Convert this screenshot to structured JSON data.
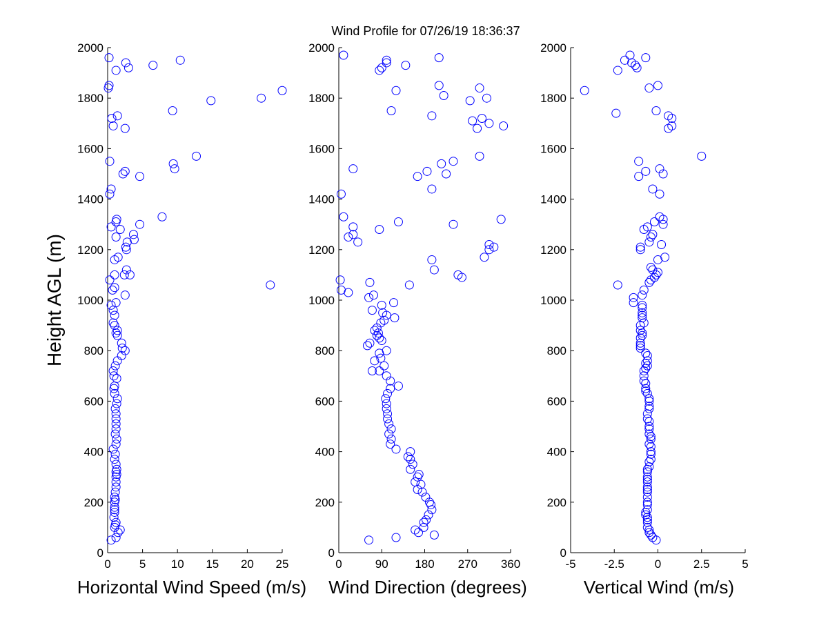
{
  "title": "Wind Profile for  07/26/19 18:36:37",
  "chart_data": [
    {
      "type": "scatter",
      "xlabel": "Horizontal Wind Speed (m/s)",
      "ylabel": "Height AGL (m)",
      "xlim": [
        0,
        25
      ],
      "ylim": [
        0,
        2000
      ],
      "xticks": [
        "0",
        "5",
        "10",
        "15",
        "20",
        "25"
      ],
      "yticks": [
        "0",
        "200",
        "400",
        "600",
        "800",
        "1000",
        "1200",
        "1400",
        "1600",
        "1800",
        "2000"
      ],
      "marker_color": "#0000ff",
      "points": [
        [
          0.5,
          50
        ],
        [
          1.2,
          60
        ],
        [
          1.5,
          80
        ],
        [
          1.8,
          90
        ],
        [
          1.0,
          100
        ],
        [
          1.1,
          110
        ],
        [
          1.2,
          120
        ],
        [
          0.9,
          140
        ],
        [
          1.0,
          160
        ],
        [
          1.0,
          170
        ],
        [
          1.0,
          180
        ],
        [
          1.0,
          200
        ],
        [
          1.1,
          210
        ],
        [
          1.0,
          220
        ],
        [
          1.1,
          240
        ],
        [
          1.2,
          260
        ],
        [
          1.2,
          280
        ],
        [
          1.2,
          300
        ],
        [
          1.3,
          310
        ],
        [
          1.2,
          320
        ],
        [
          1.3,
          330
        ],
        [
          1.2,
          350
        ],
        [
          1.0,
          370
        ],
        [
          1.1,
          390
        ],
        [
          0.8,
          410
        ],
        [
          1.2,
          430
        ],
        [
          1.3,
          450
        ],
        [
          1.1,
          470
        ],
        [
          1.2,
          490
        ],
        [
          1.2,
          510
        ],
        [
          1.2,
          530
        ],
        [
          1.2,
          550
        ],
        [
          1.1,
          570
        ],
        [
          1.3,
          590
        ],
        [
          1.4,
          610
        ],
        [
          1.0,
          630
        ],
        [
          0.9,
          650
        ],
        [
          1.0,
          660
        ],
        [
          1.3,
          690
        ],
        [
          0.9,
          700
        ],
        [
          0.8,
          720
        ],
        [
          1.1,
          740
        ],
        [
          1.4,
          760
        ],
        [
          2.0,
          780
        ],
        [
          2.5,
          800
        ],
        [
          2.1,
          810
        ],
        [
          2.0,
          830
        ],
        [
          1.4,
          860
        ],
        [
          1.2,
          870
        ],
        [
          1.4,
          880
        ],
        [
          1.0,
          900
        ],
        [
          0.8,
          910
        ],
        [
          1.0,
          940
        ],
        [
          0.8,
          960
        ],
        [
          0.5,
          980
        ],
        [
          1.2,
          990
        ],
        [
          2.5,
          1020
        ],
        [
          0.7,
          1040
        ],
        [
          1.0,
          1050
        ],
        [
          0.3,
          1080
        ],
        [
          23.3,
          1060
        ],
        [
          1.0,
          1100
        ],
        [
          2.4,
          1100
        ],
        [
          3.2,
          1100
        ],
        [
          2.7,
          1120
        ],
        [
          1.0,
          1160
        ],
        [
          1.5,
          1170
        ],
        [
          2.7,
          1200
        ],
        [
          2.6,
          1210
        ],
        [
          2.8,
          1230
        ],
        [
          3.8,
          1240
        ],
        [
          1.2,
          1250
        ],
        [
          3.7,
          1260
        ],
        [
          1.8,
          1280
        ],
        [
          0.5,
          1290
        ],
        [
          4.6,
          1300
        ],
        [
          1.2,
          1310
        ],
        [
          1.3,
          1320
        ],
        [
          7.8,
          1330
        ],
        [
          0.3,
          1420
        ],
        [
          0.5,
          1440
        ],
        [
          4.6,
          1490
        ],
        [
          2.2,
          1500
        ],
        [
          2.5,
          1510
        ],
        [
          9.6,
          1520
        ],
        [
          9.4,
          1540
        ],
        [
          0.3,
          1550
        ],
        [
          12.7,
          1570
        ],
        [
          2.5,
          1680
        ],
        [
          0.8,
          1690
        ],
        [
          0.6,
          1720
        ],
        [
          1.4,
          1730
        ],
        [
          9.3,
          1750
        ],
        [
          14.8,
          1790
        ],
        [
          22.0,
          1800
        ],
        [
          25.0,
          1830
        ],
        [
          0.1,
          1840
        ],
        [
          0.2,
          1850
        ],
        [
          1.2,
          1910
        ],
        [
          3.0,
          1920
        ],
        [
          6.5,
          1930
        ],
        [
          2.6,
          1940
        ],
        [
          10.4,
          1950
        ],
        [
          0.2,
          1960
        ]
      ]
    },
    {
      "type": "scatter",
      "xlabel": "Wind Direction (degrees)",
      "ylabel": "",
      "xlim": [
        0,
        360
      ],
      "ylim": [
        0,
        2000
      ],
      "xticks": [
        "0",
        "90",
        "180",
        "270",
        "360"
      ],
      "yticks": [
        "0",
        "200",
        "400",
        "600",
        "800",
        "1000",
        "1200",
        "1400",
        "1600",
        "1800",
        "2000"
      ],
      "marker_color": "#0000ff",
      "points": [
        [
          63,
          50
        ],
        [
          120,
          60
        ],
        [
          200,
          70
        ],
        [
          167,
          80
        ],
        [
          160,
          90
        ],
        [
          178,
          100
        ],
        [
          178,
          120
        ],
        [
          183,
          130
        ],
        [
          188,
          150
        ],
        [
          195,
          170
        ],
        [
          193,
          190
        ],
        [
          190,
          200
        ],
        [
          182,
          220
        ],
        [
          175,
          240
        ],
        [
          165,
          250
        ],
        [
          172,
          270
        ],
        [
          160,
          280
        ],
        [
          165,
          300
        ],
        [
          168,
          310
        ],
        [
          150,
          330
        ],
        [
          155,
          350
        ],
        [
          150,
          370
        ],
        [
          145,
          380
        ],
        [
          150,
          400
        ],
        [
          120,
          410
        ],
        [
          108,
          430
        ],
        [
          110,
          450
        ],
        [
          105,
          470
        ],
        [
          110,
          490
        ],
        [
          105,
          510
        ],
        [
          102,
          530
        ],
        [
          102,
          550
        ],
        [
          100,
          570
        ],
        [
          100,
          590
        ],
        [
          98,
          610
        ],
        [
          102,
          630
        ],
        [
          108,
          650
        ],
        [
          125,
          660
        ],
        [
          108,
          680
        ],
        [
          100,
          700
        ],
        [
          85,
          720
        ],
        [
          70,
          720
        ],
        [
          95,
          740
        ],
        [
          75,
          760
        ],
        [
          88,
          770
        ],
        [
          85,
          790
        ],
        [
          100,
          800
        ],
        [
          60,
          820
        ],
        [
          65,
          830
        ],
        [
          90,
          840
        ],
        [
          85,
          850
        ],
        [
          80,
          860
        ],
        [
          83,
          870
        ],
        [
          75,
          880
        ],
        [
          80,
          890
        ],
        [
          88,
          910
        ],
        [
          95,
          920
        ],
        [
          117,
          930
        ],
        [
          100,
          940
        ],
        [
          92,
          950
        ],
        [
          70,
          960
        ],
        [
          90,
          980
        ],
        [
          115,
          990
        ],
        [
          63,
          1010
        ],
        [
          73,
          1020
        ],
        [
          65,
          1070
        ],
        [
          5,
          1040
        ],
        [
          20,
          1030
        ],
        [
          148,
          1060
        ],
        [
          3,
          1080
        ],
        [
          258,
          1090
        ],
        [
          250,
          1100
        ],
        [
          200,
          1120
        ],
        [
          195,
          1160
        ],
        [
          305,
          1170
        ],
        [
          315,
          1200
        ],
        [
          325,
          1210
        ],
        [
          315,
          1220
        ],
        [
          40,
          1230
        ],
        [
          20,
          1250
        ],
        [
          30,
          1260
        ],
        [
          85,
          1280
        ],
        [
          30,
          1290
        ],
        [
          240,
          1300
        ],
        [
          125,
          1310
        ],
        [
          340,
          1320
        ],
        [
          10,
          1330
        ],
        [
          195,
          1440
        ],
        [
          5,
          1420
        ],
        [
          165,
          1490
        ],
        [
          225,
          1500
        ],
        [
          185,
          1510
        ],
        [
          30,
          1520
        ],
        [
          215,
          1540
        ],
        [
          240,
          1550
        ],
        [
          295,
          1570
        ],
        [
          345,
          1690
        ],
        [
          290,
          1680
        ],
        [
          315,
          1700
        ],
        [
          280,
          1710
        ],
        [
          300,
          1720
        ],
        [
          195,
          1730
        ],
        [
          110,
          1750
        ],
        [
          275,
          1790
        ],
        [
          310,
          1800
        ],
        [
          295,
          1840
        ],
        [
          220,
          1810
        ],
        [
          120,
          1830
        ],
        [
          210,
          1850
        ],
        [
          85,
          1910
        ],
        [
          90,
          1920
        ],
        [
          140,
          1930
        ],
        [
          100,
          1940
        ],
        [
          100,
          1950
        ],
        [
          210,
          1960
        ],
        [
          10,
          1970
        ]
      ]
    },
    {
      "type": "scatter",
      "xlabel": "Vertical Wind (m/s)",
      "ylabel": "",
      "xlim": [
        -5,
        5
      ],
      "ylim": [
        0,
        2000
      ],
      "xticks": [
        "-5",
        "-2.5",
        "0",
        "2.5",
        "5"
      ],
      "yticks": [
        "0",
        "200",
        "400",
        "600",
        "800",
        "1000",
        "1200",
        "1400",
        "1600",
        "1800",
        "2000"
      ],
      "marker_color": "#0000ff",
      "points": [
        [
          -0.1,
          50
        ],
        [
          -0.3,
          60
        ],
        [
          -0.4,
          70
        ],
        [
          -0.5,
          80
        ],
        [
          -0.5,
          90
        ],
        [
          -0.6,
          100
        ],
        [
          -0.6,
          120
        ],
        [
          -0.6,
          130
        ],
        [
          -0.6,
          140
        ],
        [
          -0.7,
          150
        ],
        [
          -0.7,
          160
        ],
        [
          -0.6,
          170
        ],
        [
          -0.6,
          190
        ],
        [
          -0.6,
          200
        ],
        [
          -0.6,
          220
        ],
        [
          -0.6,
          240
        ],
        [
          -0.6,
          250
        ],
        [
          -0.6,
          260
        ],
        [
          -0.6,
          280
        ],
        [
          -0.6,
          290
        ],
        [
          -0.6,
          300
        ],
        [
          -0.6,
          320
        ],
        [
          -0.6,
          330
        ],
        [
          -0.5,
          340
        ],
        [
          -0.5,
          360
        ],
        [
          -0.4,
          370
        ],
        [
          -0.4,
          390
        ],
        [
          -0.4,
          400
        ],
        [
          -0.4,
          420
        ],
        [
          -0.5,
          430
        ],
        [
          -0.4,
          450
        ],
        [
          -0.4,
          460
        ],
        [
          -0.5,
          470
        ],
        [
          -0.5,
          490
        ],
        [
          -0.5,
          500
        ],
        [
          -0.5,
          520
        ],
        [
          -0.6,
          530
        ],
        [
          -0.6,
          550
        ],
        [
          -0.5,
          570
        ],
        [
          -0.5,
          580
        ],
        [
          -0.5,
          600
        ],
        [
          -0.5,
          610
        ],
        [
          -0.6,
          630
        ],
        [
          -0.7,
          640
        ],
        [
          -0.7,
          650
        ],
        [
          -0.7,
          670
        ],
        [
          -0.8,
          680
        ],
        [
          -0.8,
          700
        ],
        [
          -0.8,
          720
        ],
        [
          -0.7,
          730
        ],
        [
          -0.6,
          740
        ],
        [
          -0.7,
          750
        ],
        [
          -0.6,
          760
        ],
        [
          -0.6,
          780
        ],
        [
          -0.7,
          790
        ],
        [
          -1.0,
          810
        ],
        [
          -1.0,
          820
        ],
        [
          -1.0,
          830
        ],
        [
          -1.0,
          850
        ],
        [
          -0.9,
          860
        ],
        [
          -0.9,
          870
        ],
        [
          -1.0,
          880
        ],
        [
          -1.0,
          900
        ],
        [
          -0.8,
          910
        ],
        [
          -0.9,
          930
        ],
        [
          -0.9,
          940
        ],
        [
          -0.9,
          950
        ],
        [
          -0.9,
          970
        ],
        [
          -0.9,
          980
        ],
        [
          -1.4,
          990
        ],
        [
          -1.4,
          1010
        ],
        [
          -0.9,
          1020
        ],
        [
          -0.8,
          1040
        ],
        [
          -2.3,
          1060
        ],
        [
          -0.5,
          1070
        ],
        [
          -0.4,
          1080
        ],
        [
          -0.2,
          1090
        ],
        [
          -0.1,
          1100
        ],
        [
          0.0,
          1110
        ],
        [
          -0.3,
          1120
        ],
        [
          -0.4,
          1130
        ],
        [
          0.0,
          1160
        ],
        [
          0.4,
          1170
        ],
        [
          -1.0,
          1200
        ],
        [
          -1.0,
          1210
        ],
        [
          0.2,
          1220
        ],
        [
          -0.5,
          1230
        ],
        [
          -0.4,
          1250
        ],
        [
          -0.3,
          1260
        ],
        [
          -0.8,
          1280
        ],
        [
          -0.6,
          1290
        ],
        [
          0.3,
          1300
        ],
        [
          -0.2,
          1310
        ],
        [
          0.3,
          1320
        ],
        [
          0.1,
          1330
        ],
        [
          0.1,
          1420
        ],
        [
          -0.3,
          1440
        ],
        [
          -1.1,
          1490
        ],
        [
          0.3,
          1500
        ],
        [
          -0.7,
          1510
        ],
        [
          0.1,
          1520
        ],
        [
          -1.1,
          1550
        ],
        [
          2.5,
          1570
        ],
        [
          0.6,
          1680
        ],
        [
          0.8,
          1690
        ],
        [
          0.8,
          1720
        ],
        [
          0.6,
          1730
        ],
        [
          -0.1,
          1750
        ],
        [
          -2.4,
          1740
        ],
        [
          -4.2,
          1830
        ],
        [
          -0.5,
          1840
        ],
        [
          0.0,
          1850
        ],
        [
          -2.3,
          1910
        ],
        [
          -1.2,
          1920
        ],
        [
          -1.3,
          1930
        ],
        [
          -1.5,
          1940
        ],
        [
          -1.9,
          1950
        ],
        [
          -0.7,
          1960
        ],
        [
          -1.6,
          1970
        ]
      ]
    }
  ]
}
